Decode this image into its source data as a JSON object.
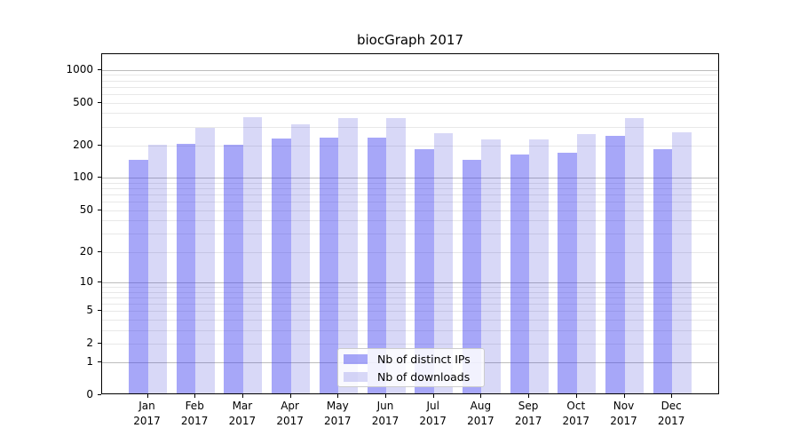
{
  "chart_data": {
    "type": "bar",
    "title": "biocGraph 2017",
    "y_scale": "log1p",
    "grid": true,
    "legend_position": "lower center",
    "categories": [
      "Jan",
      "Feb",
      "Mar",
      "Apr",
      "May",
      "Jun",
      "Jul",
      "Aug",
      "Sep",
      "Oct",
      "Nov",
      "Dec"
    ],
    "year_label": "2017",
    "series": [
      {
        "name": "Nb of distinct IPs",
        "color": "rgba(60,60,240,0.45)",
        "values": [
          142,
          200,
          195,
          225,
          228,
          227,
          178,
          143,
          158,
          164,
          236,
          180
        ]
      },
      {
        "name": "Nb of downloads",
        "color": "rgba(50,50,215,0.19)",
        "values": [
          197,
          283,
          352,
          306,
          347,
          343,
          253,
          218,
          220,
          245,
          343,
          258
        ]
      }
    ],
    "y_ticks": [
      0,
      1,
      2,
      5,
      10,
      20,
      50,
      100,
      200,
      500,
      1000
    ],
    "y_major_ticks": [
      1,
      10,
      100,
      1000
    ],
    "ylim": [
      0,
      1400
    ],
    "colors": {
      "grid_major": "#bdbdbd",
      "grid_minor": "#e8e8e8",
      "spine": "#000000",
      "text": "#000000"
    }
  }
}
